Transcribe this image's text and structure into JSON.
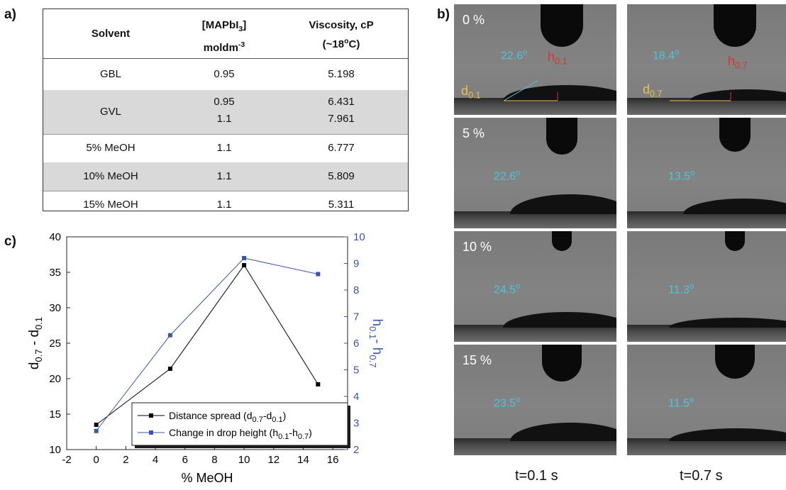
{
  "panel_labels": {
    "a": "a)",
    "b": "b)",
    "c": "c)"
  },
  "table": {
    "headers": [
      "Solvent",
      "[MAPbI3] moldm-3",
      "Viscosity, cP (~18oC)"
    ],
    "rows": [
      {
        "solvent": "GBL",
        "conc": [
          "0.95"
        ],
        "visc": [
          "5.198"
        ],
        "shaded": false
      },
      {
        "solvent": "GVL",
        "conc": [
          "0.95",
          "1.1"
        ],
        "visc": [
          "6.431",
          "7.961"
        ],
        "shaded": true
      },
      {
        "solvent": "5% MeOH",
        "conc": [
          "1.1"
        ],
        "visc": [
          "6.777"
        ],
        "shaded": false
      },
      {
        "solvent": "10% MeOH",
        "conc": [
          "1.1"
        ],
        "visc": [
          "5.809"
        ],
        "shaded": true
      },
      {
        "solvent": "15% MeOH",
        "conc": [
          "1.1"
        ],
        "visc": [
          "5.311"
        ],
        "shaded": false
      }
    ]
  },
  "photos": {
    "rows": [
      {
        "label": "0 %",
        "angle_a": "22.6o",
        "angle_b": "18.4o"
      },
      {
        "label": "5 %",
        "angle_a": "22.6o",
        "angle_b": "13.5o"
      },
      {
        "label": "10 %",
        "angle_a": "24.5o",
        "angle_b": "11.3o"
      },
      {
        "label": "15 %",
        "angle_a": "23.5o",
        "angle_b": "11.5o"
      }
    ],
    "annotations": {
      "d01": "d0.1",
      "h01": "h0.1",
      "d07": "d0.7",
      "h07": "h0.7"
    },
    "time_labels": [
      "t=0.1 s",
      "t=0.7 s"
    ]
  },
  "colors": {
    "series1": "#000000",
    "series2": "#3b55a8",
    "angle_text": "#4fc3e0",
    "h_label": "#e03030",
    "d_label": "#e8c050",
    "table_shade": "#d9d9d9"
  },
  "chart_data": {
    "type": "line",
    "xlabel": "% MeOH",
    "ylabel": "d0.7 - d0.1",
    "y2label": "h0.1 - h0.7",
    "xlim": [
      -2,
      17
    ],
    "ylim": [
      10,
      40
    ],
    "y2lim": [
      2,
      10
    ],
    "xticks": [
      -2,
      0,
      2,
      4,
      6,
      8,
      10,
      12,
      14,
      16
    ],
    "yticks": [
      10,
      15,
      20,
      25,
      30,
      35,
      40
    ],
    "y2ticks": [
      2,
      3,
      4,
      5,
      6,
      7,
      8,
      9,
      10
    ],
    "legend_position": "bottom-right",
    "series": [
      {
        "name": "Distance spread (d0.7-d0.1)",
        "axis": "left",
        "x": [
          0,
          5,
          10,
          15
        ],
        "y": [
          13.5,
          21.4,
          36.0,
          19.2
        ]
      },
      {
        "name": "Change in drop height (h0.1-h0.7)",
        "axis": "right",
        "x": [
          0,
          5,
          10,
          15
        ],
        "y": [
          2.7,
          6.3,
          9.2,
          8.6
        ]
      }
    ]
  }
}
